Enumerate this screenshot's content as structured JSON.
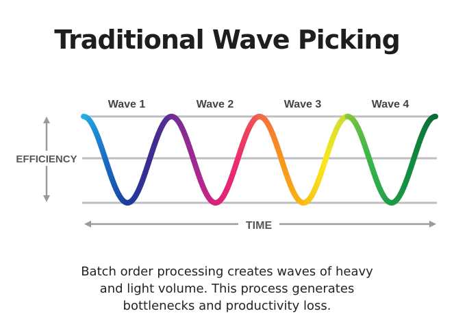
{
  "title": "Traditional Wave Picking",
  "y_axis_label": "EFFICIENCY",
  "x_axis_label": "TIME",
  "waves": [
    {
      "label": "Wave 1",
      "colors": [
        "#25b5e8",
        "#1a6cc4",
        "#1b3f9c",
        "#3a2c93",
        "#5c2d8f"
      ]
    },
    {
      "label": "Wave 2",
      "colors": [
        "#6b2e91",
        "#9b2a93",
        "#d6237f",
        "#ec2a6e",
        "#f05a4f"
      ]
    },
    {
      "label": "Wave 3",
      "colors": [
        "#f2664a",
        "#f7941d",
        "#fbb713",
        "#f9e71e",
        "#c7dc3a"
      ]
    },
    {
      "label": "Wave 4",
      "colors": [
        "#8cc63f",
        "#39b54a",
        "#1f9d48",
        "#138a41",
        "#0b6b34"
      ]
    }
  ],
  "colors": {
    "gridline": "#bcbec0",
    "axis": "#9a9a9a",
    "axis_label": "#555555",
    "wave_label": "#444444"
  },
  "caption": [
    "Batch order processing creates waves of heavy",
    "and light volume. This process generates",
    "bottlenecks and productivity loss."
  ]
}
